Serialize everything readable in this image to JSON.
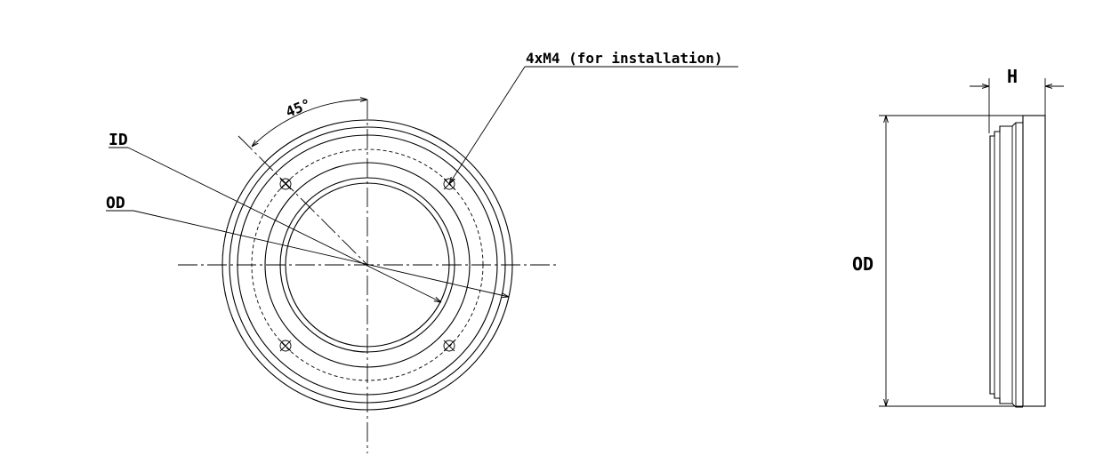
{
  "front_view": {
    "angle_label": "45°",
    "hole_callout": "4xM4 (for installation)",
    "id_label": "ID",
    "od_label": "OD"
  },
  "side_view": {
    "height_label": "H",
    "od_label": "OD"
  }
}
